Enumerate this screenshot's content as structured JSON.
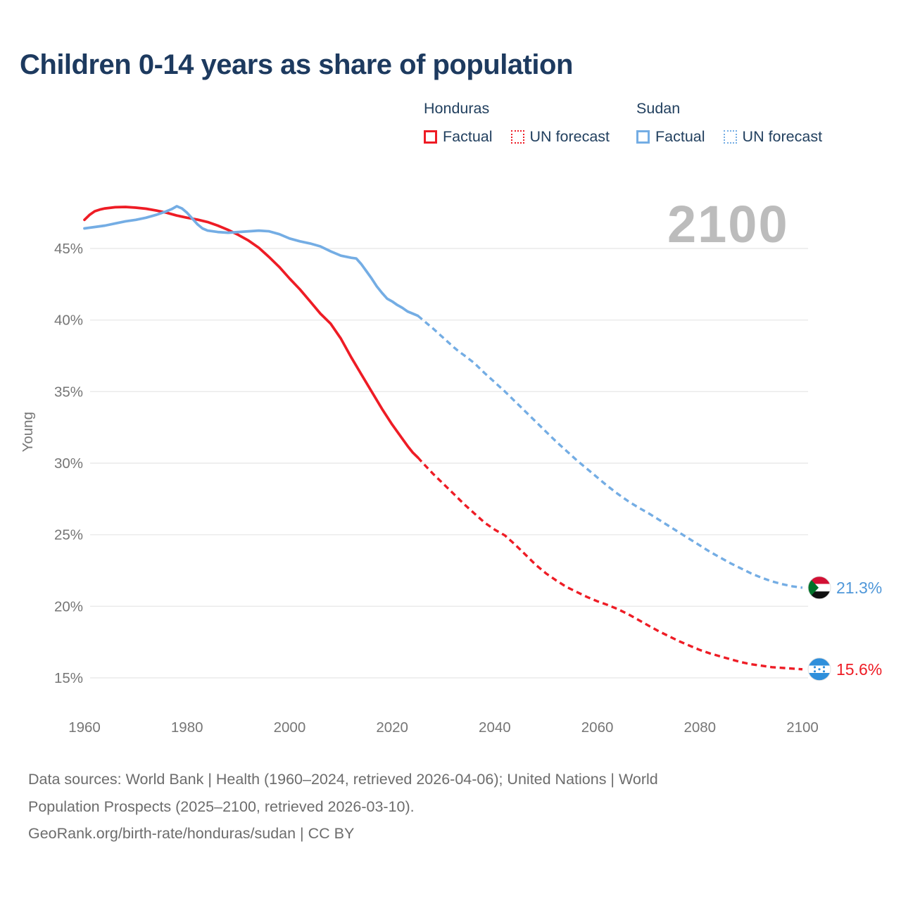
{
  "title": "Children 0-14 years as share of population",
  "watermark": "2100",
  "colors": {
    "honduras": "#ee1c25",
    "sudan": "#74ade4",
    "sudan_label_text": "#4f97d9",
    "honduras_label_text": "#ee1c25",
    "title_text": "#1d3a5f",
    "legend_text": "#22405f",
    "axis_text": "#767676",
    "grid": "#eaeaea",
    "watermark_text": "#bcbcbc",
    "footer_text": "#6c6c6c",
    "honduras_flag_blue": "#2e8fdb",
    "sudan_flag_red": "#d21034",
    "sudan_flag_green": "#007229",
    "sudan_flag_black": "#101010"
  },
  "legend": {
    "groups": [
      {
        "label": "Honduras",
        "items": [
          {
            "label": "Factual",
            "style": "solid"
          },
          {
            "label": "UN forecast",
            "style": "dashed"
          }
        ]
      },
      {
        "label": "Sudan",
        "items": [
          {
            "label": "Factual",
            "style": "solid"
          },
          {
            "label": "UN forecast",
            "style": "dashed"
          }
        ]
      }
    ]
  },
  "chart_data": {
    "type": "line",
    "title": "Children 0-14 years as share of population",
    "xlabel": "",
    "ylabel": "Young",
    "x_ticks": [
      1960,
      1980,
      2000,
      2020,
      2040,
      2060,
      2080,
      2100
    ],
    "y_ticks": [
      15,
      20,
      25,
      30,
      35,
      40,
      45
    ],
    "y_tick_suffix": "%",
    "xlim": [
      1960,
      2100
    ],
    "ylim": [
      13,
      49
    ],
    "grid": "horizontal",
    "legend_position": "top-right",
    "series": [
      {
        "name": "Honduras Factual",
        "country": "honduras",
        "style": "solid",
        "points": [
          [
            1960,
            47.0
          ],
          [
            1961,
            47.35
          ],
          [
            1962,
            47.6
          ],
          [
            1963,
            47.72
          ],
          [
            1964,
            47.8
          ],
          [
            1966,
            47.88
          ],
          [
            1968,
            47.9
          ],
          [
            1970,
            47.85
          ],
          [
            1972,
            47.78
          ],
          [
            1974,
            47.65
          ],
          [
            1976,
            47.5
          ],
          [
            1978,
            47.3
          ],
          [
            1980,
            47.15
          ],
          [
            1982,
            47.02
          ],
          [
            1984,
            46.85
          ],
          [
            1986,
            46.6
          ],
          [
            1988,
            46.3
          ],
          [
            1990,
            45.95
          ],
          [
            1992,
            45.55
          ],
          [
            1994,
            45.05
          ],
          [
            1996,
            44.4
          ],
          [
            1998,
            43.7
          ],
          [
            2000,
            42.9
          ],
          [
            2002,
            42.15
          ],
          [
            2004,
            41.3
          ],
          [
            2006,
            40.45
          ],
          [
            2008,
            39.75
          ],
          [
            2010,
            38.7
          ],
          [
            2012,
            37.4
          ],
          [
            2014,
            36.2
          ],
          [
            2016,
            35.0
          ],
          [
            2018,
            33.8
          ],
          [
            2020,
            32.7
          ],
          [
            2022,
            31.7
          ],
          [
            2023,
            31.2
          ],
          [
            2024,
            30.75
          ],
          [
            2025,
            30.4
          ]
        ]
      },
      {
        "name": "Honduras UN forecast",
        "country": "honduras",
        "style": "dashed",
        "points": [
          [
            2025,
            30.4
          ],
          [
            2026,
            30.0
          ],
          [
            2028,
            29.25
          ],
          [
            2030,
            28.55
          ],
          [
            2032,
            27.85
          ],
          [
            2034,
            27.15
          ],
          [
            2036,
            26.5
          ],
          [
            2038,
            25.85
          ],
          [
            2040,
            25.35
          ],
          [
            2042,
            24.95
          ],
          [
            2044,
            24.3
          ],
          [
            2046,
            23.6
          ],
          [
            2048,
            22.9
          ],
          [
            2050,
            22.3
          ],
          [
            2052,
            21.8
          ],
          [
            2054,
            21.35
          ],
          [
            2056,
            21.0
          ],
          [
            2058,
            20.65
          ],
          [
            2060,
            20.35
          ],
          [
            2062,
            20.1
          ],
          [
            2064,
            19.8
          ],
          [
            2066,
            19.45
          ],
          [
            2068,
            19.05
          ],
          [
            2070,
            18.65
          ],
          [
            2072,
            18.25
          ],
          [
            2074,
            17.9
          ],
          [
            2076,
            17.55
          ],
          [
            2078,
            17.25
          ],
          [
            2080,
            16.95
          ],
          [
            2082,
            16.7
          ],
          [
            2084,
            16.5
          ],
          [
            2086,
            16.3
          ],
          [
            2088,
            16.1
          ],
          [
            2090,
            15.95
          ],
          [
            2092,
            15.85
          ],
          [
            2094,
            15.75
          ],
          [
            2096,
            15.7
          ],
          [
            2098,
            15.65
          ],
          [
            2100,
            15.6
          ]
        ]
      },
      {
        "name": "Sudan Factual",
        "country": "sudan",
        "style": "solid",
        "points": [
          [
            1960,
            46.4
          ],
          [
            1962,
            46.5
          ],
          [
            1964,
            46.6
          ],
          [
            1966,
            46.75
          ],
          [
            1968,
            46.9
          ],
          [
            1970,
            47.0
          ],
          [
            1972,
            47.15
          ],
          [
            1974,
            47.35
          ],
          [
            1976,
            47.6
          ],
          [
            1977,
            47.75
          ],
          [
            1978,
            47.95
          ],
          [
            1979,
            47.8
          ],
          [
            1980,
            47.5
          ],
          [
            1981,
            47.1
          ],
          [
            1982,
            46.7
          ],
          [
            1983,
            46.4
          ],
          [
            1984,
            46.25
          ],
          [
            1986,
            46.15
          ],
          [
            1988,
            46.1
          ],
          [
            1990,
            46.15
          ],
          [
            1992,
            46.2
          ],
          [
            1994,
            46.25
          ],
          [
            1996,
            46.2
          ],
          [
            1998,
            46.0
          ],
          [
            2000,
            45.7
          ],
          [
            2002,
            45.5
          ],
          [
            2004,
            45.35
          ],
          [
            2006,
            45.15
          ],
          [
            2008,
            44.8
          ],
          [
            2010,
            44.5
          ],
          [
            2012,
            44.35
          ],
          [
            2013,
            44.3
          ],
          [
            2014,
            43.9
          ],
          [
            2015,
            43.4
          ],
          [
            2016,
            42.9
          ],
          [
            2017,
            42.35
          ],
          [
            2018,
            41.9
          ],
          [
            2019,
            41.5
          ],
          [
            2020,
            41.3
          ],
          [
            2021,
            41.05
          ],
          [
            2022,
            40.85
          ],
          [
            2023,
            40.6
          ],
          [
            2024,
            40.45
          ],
          [
            2025,
            40.3
          ]
        ]
      },
      {
        "name": "Sudan UN forecast",
        "country": "sudan",
        "style": "dashed",
        "points": [
          [
            2025,
            40.3
          ],
          [
            2026,
            40.0
          ],
          [
            2028,
            39.4
          ],
          [
            2030,
            38.75
          ],
          [
            2032,
            38.1
          ],
          [
            2033,
            37.8
          ],
          [
            2034,
            37.55
          ],
          [
            2036,
            37.0
          ],
          [
            2038,
            36.3
          ],
          [
            2040,
            35.65
          ],
          [
            2042,
            35.0
          ],
          [
            2044,
            34.3
          ],
          [
            2046,
            33.6
          ],
          [
            2048,
            32.9
          ],
          [
            2050,
            32.2
          ],
          [
            2052,
            31.5
          ],
          [
            2054,
            30.85
          ],
          [
            2056,
            30.2
          ],
          [
            2058,
            29.6
          ],
          [
            2060,
            29.0
          ],
          [
            2062,
            28.4
          ],
          [
            2064,
            27.85
          ],
          [
            2066,
            27.35
          ],
          [
            2068,
            26.9
          ],
          [
            2070,
            26.5
          ],
          [
            2072,
            26.05
          ],
          [
            2074,
            25.6
          ],
          [
            2076,
            25.15
          ],
          [
            2078,
            24.7
          ],
          [
            2080,
            24.25
          ],
          [
            2082,
            23.8
          ],
          [
            2084,
            23.4
          ],
          [
            2086,
            23.0
          ],
          [
            2088,
            22.65
          ],
          [
            2090,
            22.3
          ],
          [
            2092,
            22.0
          ],
          [
            2094,
            21.75
          ],
          [
            2096,
            21.55
          ],
          [
            2098,
            21.4
          ],
          [
            2100,
            21.3
          ]
        ]
      }
    ],
    "end_labels": [
      {
        "series": "Sudan",
        "flag": "sudan",
        "value": 21.3,
        "value_label": "21.3%"
      },
      {
        "series": "Honduras",
        "flag": "honduras",
        "value": 15.6,
        "value_label": "15.6%"
      }
    ]
  },
  "footer": {
    "line1": "Data sources: World Bank | Health (1960–2024, retrieved 2026-04-06); United Nations | World",
    "line2": "Population Prospects (2025–2100, retrieved 2026-03-10).",
    "line3": "GeoRank.org/birth-rate/honduras/sudan | CC BY"
  }
}
